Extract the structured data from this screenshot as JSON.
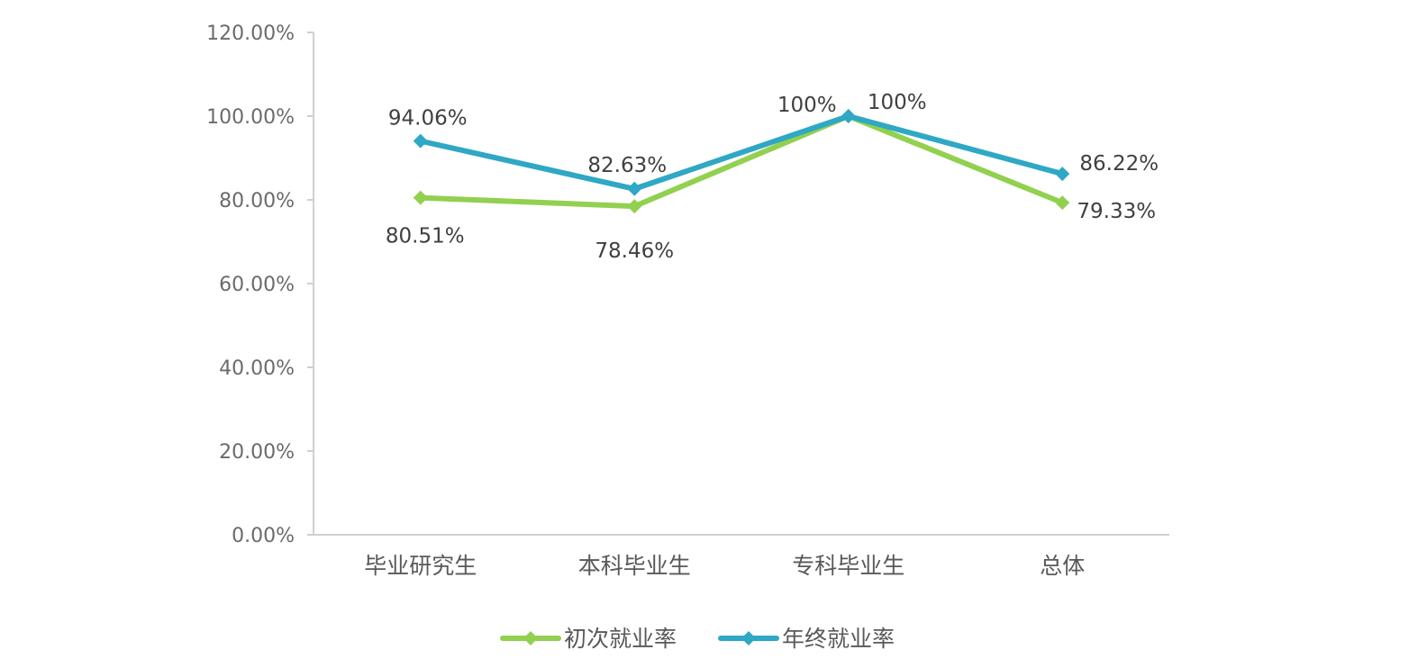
{
  "chart_data": {
    "type": "line",
    "categories": [
      "毕业研究生",
      "本科毕业生",
      "专科毕业生",
      "总体"
    ],
    "series": [
      {
        "name": "初次就业率",
        "values": [
          80.51,
          78.46,
          100,
          79.33
        ],
        "labels": [
          "80.51%",
          "78.46%",
          "100%",
          "79.33%"
        ],
        "color": "#92d050"
      },
      {
        "name": "年终就业率",
        "values": [
          94.06,
          82.63,
          100,
          86.22
        ],
        "labels": [
          "94.06%",
          "82.63%",
          "100%",
          "86.22%"
        ],
        "color": "#2ea8c4"
      }
    ],
    "ylim": [
      0,
      120
    ],
    "yticks": [
      "0.00%",
      "20.00%",
      "40.00%",
      "60.00%",
      "80.00%",
      "100.00%",
      "120.00%"
    ],
    "xlabel": "",
    "ylabel": "",
    "grid": false,
    "legend": "bottom"
  }
}
